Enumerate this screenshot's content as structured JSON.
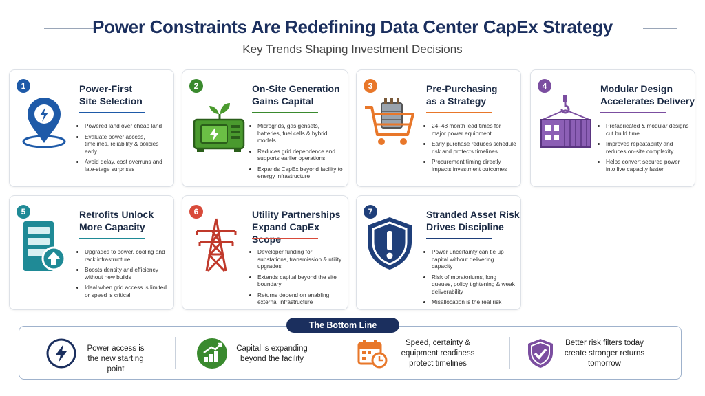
{
  "header": {
    "title": "Power Constraints Are Redefining Data Center CapEx Strategy",
    "subtitle": "Key Trends Shaping Investment Decisions"
  },
  "cards": [
    {
      "number": "1",
      "title": [
        "Power-First",
        "Site Selection"
      ],
      "bullets": [
        "Powered land over cheap land",
        "Evaluate power access, timelines, reliability & policies early",
        "Avoid delay, cost overruns and late-stage surprises"
      ]
    },
    {
      "number": "2",
      "title": [
        "On-Site Generation",
        "Gains Capital"
      ],
      "bullets": [
        "Microgrids, gas gensets, batteries, fuel cells & hybrid models",
        "Reduces grid dependence and supports earlier operations",
        "Expands CapEx beyond facility to energy infrastructure"
      ]
    },
    {
      "number": "3",
      "title": [
        "Pre-Purchasing",
        "as a Strategy"
      ],
      "bullets": [
        "24–48 month lead times for major power equipment",
        "Early purchase reduces schedule risk and protects timelines",
        "Procurement timing directly impacts investment outcomes"
      ]
    },
    {
      "number": "4",
      "title": [
        "Modular Design",
        "Accelerates Delivery"
      ],
      "bullets": [
        "Prefabricated & modular designs cut build time",
        "Improves repeatability and reduces on-site complexity",
        "Helps convert secured power into live capacity faster"
      ]
    },
    {
      "number": "5",
      "title": [
        "Retrofits Unlock",
        "More Capacity"
      ],
      "bullets": [
        "Upgrades to power, cooling and rack infrastructure",
        "Boosts density and efficiency without new builds",
        "Ideal when grid access is limited or speed is critical"
      ]
    },
    {
      "number": "6",
      "title": [
        "Utility Partnerships",
        "Expand CapEx Scope"
      ],
      "bullets": [
        "Developer funding for substations, transmission & utility upgrades",
        "Extends capital beyond the site boundary",
        "Returns depend on enabling external infrastructure"
      ]
    },
    {
      "number": "7",
      "title": [
        "Stranded Asset Risk",
        "Drives Discipline"
      ],
      "bullets": [
        "Power uncertainty can tie up capital without delivering capacity",
        "Risk of moratoriums, long queues, policy tightening & weak deliverability",
        "Misallocation is the real risk"
      ]
    }
  ],
  "bottom_line": {
    "label": "The Bottom Line",
    "items": [
      "Power access is the new starting point",
      "Capital is expanding beyond the facility",
      "Speed, certainty & equipment readiness protect timelines",
      "Better risk filters today create stronger returns tomorrow"
    ]
  }
}
